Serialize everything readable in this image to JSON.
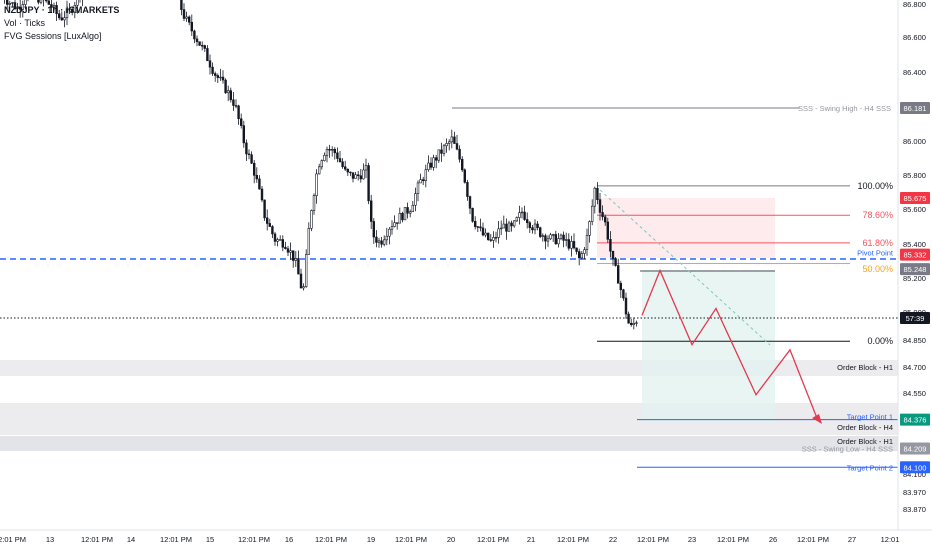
{
  "legend": {
    "symbol": "NZDJPY · 1h · ICMARKETS",
    "indicator_1": "Vol · Ticks",
    "indicator_2": "FVG Sessions [LuxAlgo]"
  },
  "colors": {
    "up": "#131722",
    "down": "#131722",
    "blue_dashed": "#2962ff",
    "red_zigzag": "#e53950",
    "fib": "#787b86",
    "orange": "#f7a325",
    "red_level": "#f7525f",
    "target": "#2962ff",
    "green_tag": "#089981",
    "gray_tag": "#9598a1"
  },
  "chart_data": {
    "type": "candlestick",
    "y_axis_ticks": [
      "86.800",
      "86.600",
      "86.400",
      "86.200",
      "86.000",
      "85.800",
      "85.600",
      "85.400",
      "85.200",
      "85.000",
      "84.850",
      "84.700",
      "84.550",
      "84.400",
      "84.250",
      "84.100",
      "83.970",
      "83.870"
    ],
    "x_axis_labels": [
      "12:01 PM",
      "13",
      "12:01 PM",
      "14",
      "12:01 PM",
      "15",
      "12:01 PM",
      "16",
      "12:01 PM",
      "19",
      "12:01 PM",
      "20",
      "12:01 PM",
      "21",
      "12:01 PM",
      "22",
      "12:01 PM",
      "23",
      "12:01 PM",
      "26",
      "12:01 PM",
      "27",
      "12:01"
    ],
    "price_path": [
      [
        0,
        86.86
      ],
      [
        8,
        86.8
      ],
      [
        18,
        86.76
      ],
      [
        28,
        86.85
      ],
      [
        38,
        86.82
      ],
      [
        50,
        86.78
      ],
      [
        60,
        86.7
      ],
      [
        70,
        86.74
      ],
      [
        80,
        86.85
      ],
      [
        100,
        86.92
      ],
      [
        120,
        86.95
      ],
      [
        140,
        86.9
      ],
      [
        160,
        86.88
      ],
      [
        175,
        86.86
      ],
      [
        185,
        86.7
      ],
      [
        195,
        86.6
      ],
      [
        205,
        86.5
      ],
      [
        215,
        86.38
      ],
      [
        225,
        86.3
      ],
      [
        235,
        86.2
      ],
      [
        245,
        85.96
      ],
      [
        255,
        85.8
      ],
      [
        265,
        85.55
      ],
      [
        275,
        85.42
      ],
      [
        285,
        85.4
      ],
      [
        295,
        85.3
      ],
      [
        303,
        85.1
      ],
      [
        310,
        85.55
      ],
      [
        318,
        85.85
      ],
      [
        326,
        85.95
      ],
      [
        336,
        85.92
      ],
      [
        346,
        85.8
      ],
      [
        356,
        85.78
      ],
      [
        366,
        85.82
      ],
      [
        372,
        85.45
      ],
      [
        380,
        85.4
      ],
      [
        390,
        85.5
      ],
      [
        400,
        85.55
      ],
      [
        410,
        85.6
      ],
      [
        420,
        85.75
      ],
      [
        430,
        85.85
      ],
      [
        440,
        85.92
      ],
      [
        452,
        86.0
      ],
      [
        462,
        85.85
      ],
      [
        472,
        85.55
      ],
      [
        482,
        85.45
      ],
      [
        492,
        85.4
      ],
      [
        502,
        85.5
      ],
      [
        512,
        85.48
      ],
      [
        522,
        85.58
      ],
      [
        532,
        85.5
      ],
      [
        542,
        85.45
      ],
      [
        552,
        85.42
      ],
      [
        562,
        85.42
      ],
      [
        572,
        85.38
      ],
      [
        580,
        85.3
      ],
      [
        588,
        85.45
      ],
      [
        595,
        85.72
      ],
      [
        600,
        85.6
      ],
      [
        606,
        85.5
      ],
      [
        612,
        85.3
      ],
      [
        618,
        85.2
      ],
      [
        624,
        85.05
      ],
      [
        630,
        84.9
      ],
      [
        636,
        84.95
      ],
      [
        640,
        84.98
      ]
    ],
    "levels": [
      {
        "label": "SSS - Swing High - H4 SSS",
        "value": "86.181",
        "price": 86.181
      },
      {
        "label": "100.00%",
        "price": 85.73
      },
      {
        "label": "78.60%",
        "price": 85.56
      },
      {
        "label": "61.80%",
        "price": 85.4
      },
      {
        "label": "Pivot Point",
        "price": 85.345
      },
      {
        "label": "50.00%",
        "price": 85.28
      },
      {
        "label": "0.00%",
        "price": 84.83
      },
      {
        "label": "Order Block - H1",
        "price": 84.66
      },
      {
        "label": "Target Point 1",
        "price": 84.376
      },
      {
        "label": "Order Block - H4",
        "price": 84.35
      },
      {
        "label": "Order Block - H1",
        "price": 84.255
      },
      {
        "label": "SSS - Swing Low - H4 SSS",
        "price": 84.209
      },
      {
        "label": "Target Point 2",
        "price": 84.1
      }
    ],
    "price_tags": [
      {
        "value": "85.675",
        "color": "#f23645",
        "price": 85.675
      },
      {
        "value": "85.332",
        "color": "#f23645",
        "price": 85.332
      },
      {
        "value": "85.248",
        "color": "#787b86",
        "price": 85.248
      },
      {
        "value": "57:39",
        "color": "#131722",
        "price": 84.975
      },
      {
        "value": "84.376",
        "color": "#089981",
        "price": 84.376
      },
      {
        "value": "84.209",
        "color": "#9598a1",
        "price": 84.209
      },
      {
        "value": "84.100",
        "color": "#2962ff",
        "price": 84.1
      },
      {
        "value": "86.181",
        "color": "#787b86",
        "price": 86.181
      }
    ],
    "projection": [
      [
        84.98
      ],
      [
        85.24
      ],
      [
        84.81
      ],
      [
        85.02
      ],
      [
        84.52
      ],
      [
        84.78
      ],
      [
        84.37
      ]
    ],
    "current_price": 84.975
  }
}
